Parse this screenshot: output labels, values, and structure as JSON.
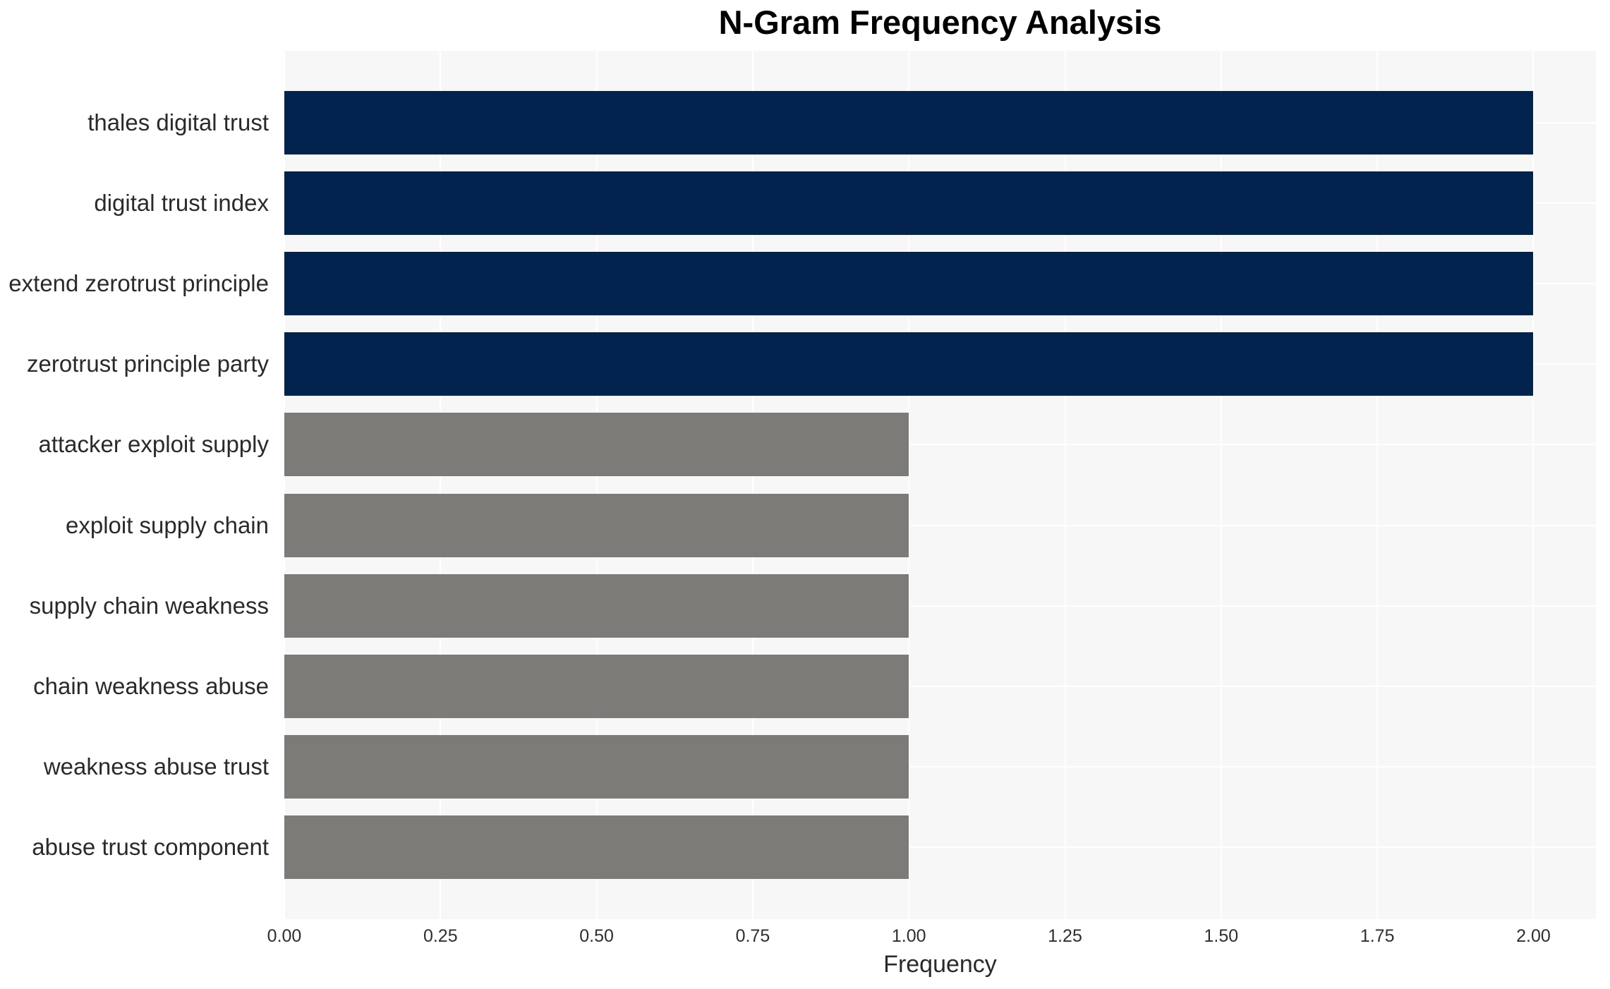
{
  "chart_data": {
    "type": "bar",
    "orientation": "horizontal",
    "title": "N-Gram Frequency Analysis",
    "xlabel": "Frequency",
    "ylabel": "",
    "categories": [
      "thales digital trust",
      "digital trust index",
      "extend zerotrust principle",
      "zerotrust principle party",
      "attacker exploit supply",
      "exploit supply chain",
      "supply chain weakness",
      "chain weakness abuse",
      "weakness abuse trust",
      "abuse trust component"
    ],
    "values": [
      2.0,
      2.0,
      2.0,
      2.0,
      1.0,
      1.0,
      1.0,
      1.0,
      1.0,
      1.0
    ],
    "bar_colors": [
      "#02234d",
      "#02234d",
      "#02234d",
      "#02234d",
      "#7c7b77",
      "#7c7b77",
      "#7c7b77",
      "#7c7b77",
      "#7c7b77",
      "#7c7b77"
    ],
    "xlim": [
      0,
      2.1
    ],
    "xticks": [
      {
        "value": 0.0,
        "label": "0.00"
      },
      {
        "value": 0.25,
        "label": "0.25"
      },
      {
        "value": 0.5,
        "label": "0.50"
      },
      {
        "value": 0.75,
        "label": "0.75"
      },
      {
        "value": 1.0,
        "label": "1.00"
      },
      {
        "value": 1.25,
        "label": "1.25"
      },
      {
        "value": 1.5,
        "label": "1.50"
      },
      {
        "value": 1.75,
        "label": "1.75"
      },
      {
        "value": 2.0,
        "label": "2.00"
      }
    ],
    "grid": true,
    "legend_position": "none",
    "style": {
      "plot_background": "#f7f7f7",
      "grid_color": "#ffffff",
      "text_color": "#2a2a2a",
      "title_color": "#000000",
      "accent_navy": "#02234d",
      "accent_gray": "#7c7b77"
    }
  }
}
